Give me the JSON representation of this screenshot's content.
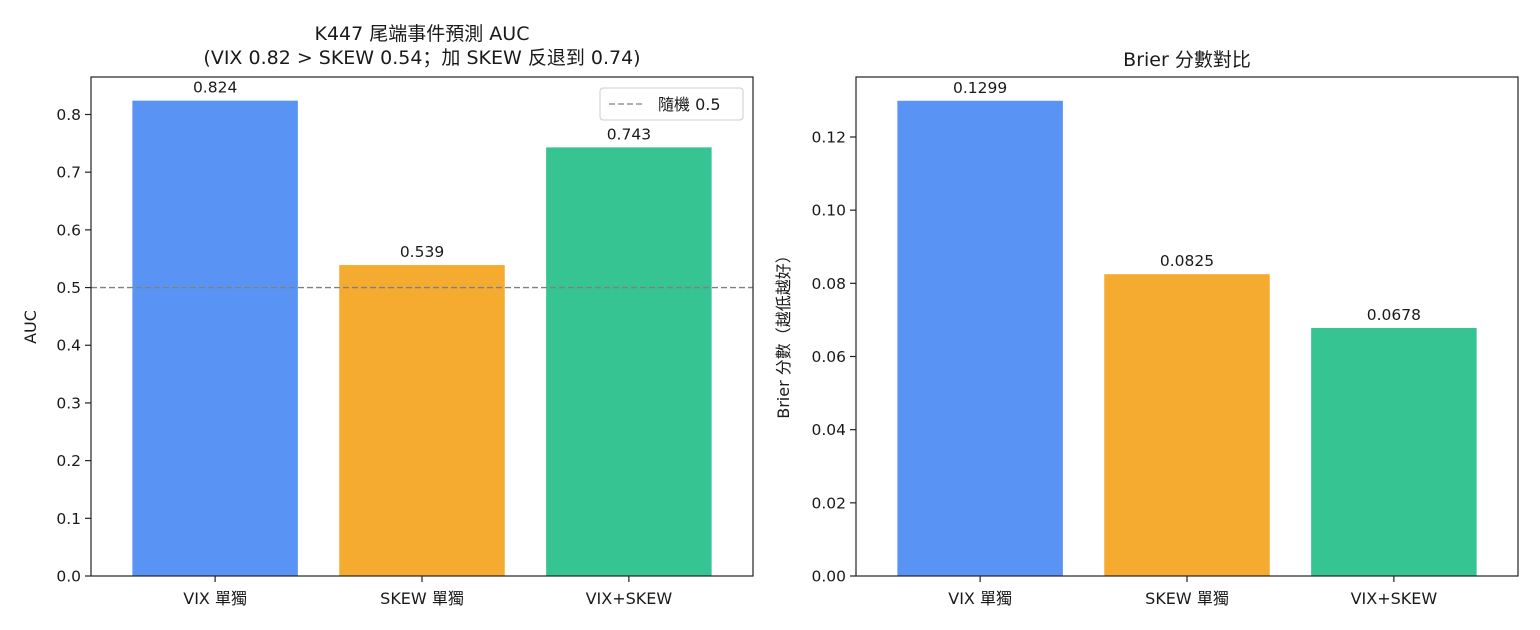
{
  "chart_data": [
    {
      "type": "bar",
      "title": "K447 尾端事件預測 AUC",
      "subtitle": "(VIX 0.82 > SKEW 0.54；加 SKEW 反退到 0.74)",
      "xlabel": "",
      "ylabel": "AUC",
      "categories": [
        "VIX 單獨",
        "SKEW 單獨",
        "VIX+SKEW"
      ],
      "values": [
        0.824,
        0.539,
        0.743
      ],
      "value_labels": [
        "0.824",
        "0.539",
        "0.743"
      ],
      "colors": [
        "#5994f5",
        "#f5ab30",
        "#36c493"
      ],
      "ylim": [
        0,
        0.865
      ],
      "yticks": [
        0,
        0.1,
        0.2,
        0.3,
        0.4,
        0.5,
        0.6,
        0.7,
        0.8
      ],
      "ytick_labels": [
        "0.0",
        "0.1",
        "0.2",
        "0.3",
        "0.4",
        "0.5",
        "0.6",
        "0.7",
        "0.8"
      ],
      "reference_line": {
        "value": 0.5,
        "label": "隨機 0.5",
        "color": "#808080",
        "style": "dashed"
      },
      "legend": {
        "placement": "top-right",
        "entries": [
          "隨機 0.5"
        ]
      },
      "grid": false
    },
    {
      "type": "bar",
      "title": "Brier 分數對比",
      "xlabel": "",
      "ylabel": "Brier 分數（越低越好）",
      "categories": [
        "VIX 單獨",
        "SKEW 單獨",
        "VIX+SKEW"
      ],
      "values": [
        0.1299,
        0.0825,
        0.0678
      ],
      "value_labels": [
        "0.1299",
        "0.0825",
        "0.0678"
      ],
      "colors": [
        "#5994f5",
        "#f5ab30",
        "#36c493"
      ],
      "ylim": [
        0,
        0.1364
      ],
      "yticks": [
        0,
        0.02,
        0.04,
        0.06,
        0.08,
        0.1,
        0.12
      ],
      "ytick_labels": [
        "0.00",
        "0.02",
        "0.04",
        "0.06",
        "0.08",
        "0.10",
        "0.12"
      ],
      "grid": false
    }
  ]
}
